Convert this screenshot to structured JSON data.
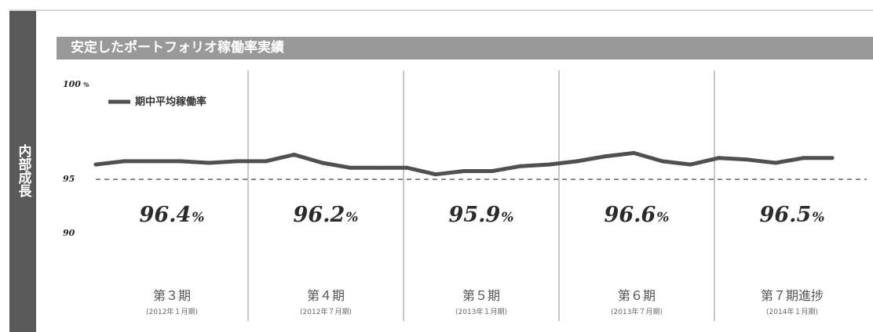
{
  "section_label": "内部成長",
  "chart_data": {
    "type": "line",
    "title": "安定したポートフォリオ稼働率実績",
    "ylim": [
      90,
      100
    ],
    "y_ticks": [
      {
        "value": 100,
        "label": "100",
        "suffix": "%"
      },
      {
        "value": 95,
        "label": "95",
        "suffix": ""
      },
      {
        "value": 90,
        "label": "90",
        "suffix": ""
      }
    ],
    "reference_line": 95,
    "legend": "期中平均稼働率",
    "series": [
      {
        "name": "期中平均稼働率",
        "values": [
          95.9,
          96.1,
          96.1,
          96.1,
          96.0,
          96.1,
          96.1,
          96.5,
          96.0,
          95.7,
          95.7,
          95.7,
          95.3,
          95.5,
          95.5,
          95.8,
          95.9,
          96.1,
          96.4,
          96.6,
          96.1,
          95.9,
          96.3,
          96.2,
          96.0,
          96.3,
          96.3
        ]
      }
    ],
    "periods": [
      {
        "label": "第３期",
        "date": "(2012年１月期)",
        "average": "96.4",
        "unit": "%"
      },
      {
        "label": "第４期",
        "date": "(2012年７月期)",
        "average": "96.2",
        "unit": "%"
      },
      {
        "label": "第５期",
        "date": "(2013年１月期)",
        "average": "95.9",
        "unit": "%"
      },
      {
        "label": "第６期",
        "date": "(2013年７月期)",
        "average": "96.6",
        "unit": "%"
      },
      {
        "label": "第７期進捗",
        "date": "(2014年１月期)",
        "average": "96.5",
        "unit": "%"
      }
    ],
    "grid": false,
    "legend_position": "top-left",
    "colors": {
      "line": "#505050",
      "title_bar": "#999999",
      "side_tab": "#595959",
      "reference": "#666666"
    }
  }
}
